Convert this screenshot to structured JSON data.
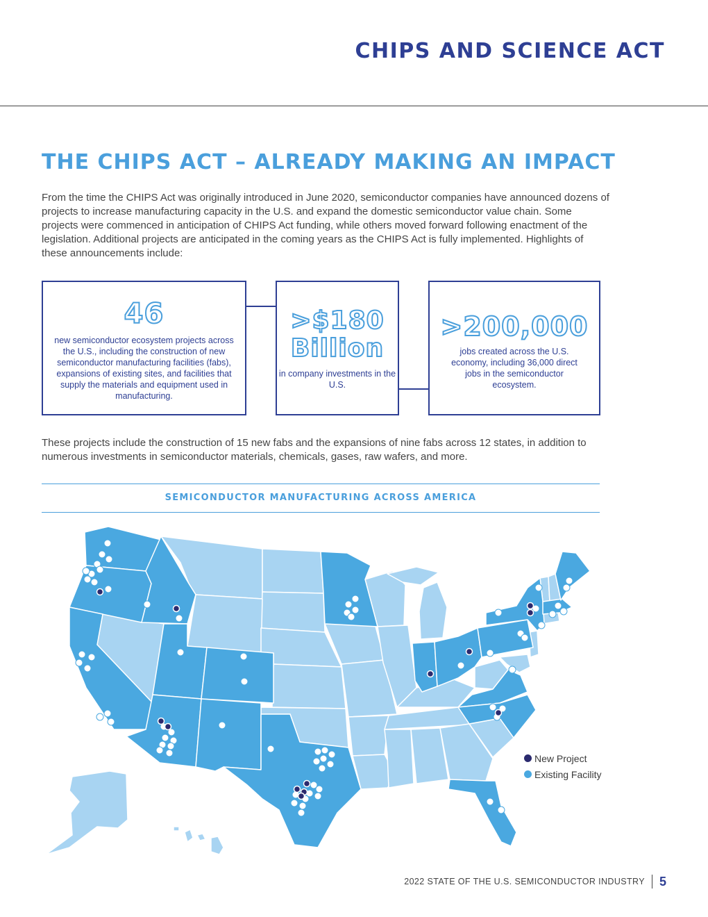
{
  "header": {
    "section_title": "CHIPS AND SCIENCE ACT"
  },
  "article": {
    "heading": "THE CHIPS ACT – ALREADY MAKING AN IMPACT",
    "intro": "From the time the CHIPS Act was originally introduced in June 2020, semiconductor companies have announced dozens of projects to increase manufacturing capacity in the U.S. and expand the domestic semiconductor value chain. Some projects were commenced in anticipation of CHIPS Act funding, while others moved forward following enactment of the legislation. Additional projects are anticipated in the coming years as the CHIPS Act is fully implemented. Highlights of these announcements include:",
    "projects_paragraph": "These projects include the construction of 15 new fabs and the expansions of nine fabs across 12 states, in addition to numerous investments in semiconductor materials, chemicals, gases, raw wafers, and more."
  },
  "stats": {
    "projects": {
      "value": "46",
      "text": "new semiconductor ecosystem projects across the U.S., including the construction of new semiconductor manufacturing facilities (fabs), expansions of existing sites, and facilities that supply the materials and equipment used in manufacturing."
    },
    "investment": {
      "value_line1": ">$180",
      "value_line2": "Billion",
      "text": "in company investments in the U.S."
    },
    "jobs": {
      "value": ">200,000",
      "text": "jobs created across the U.S. economy, including 36,000 direct jobs in the semiconductor ecosystem."
    }
  },
  "map": {
    "title": "SEMICONDUCTOR MANUFACTURING ACROSS AMERICA",
    "legend": {
      "new_project": "New Project",
      "existing_facility": "Existing Facility"
    }
  },
  "colors": {
    "navy": "#2e3f94",
    "accent_blue": "#4a9fdc",
    "state_highlight": "#4aa8e0",
    "state_light": "#a8d4f2",
    "new_project_dot": "#2b2a6e"
  },
  "footer": {
    "publication": "2022 STATE OF THE U.S. SEMICONDUCTOR INDUSTRY",
    "page_number": "5"
  }
}
